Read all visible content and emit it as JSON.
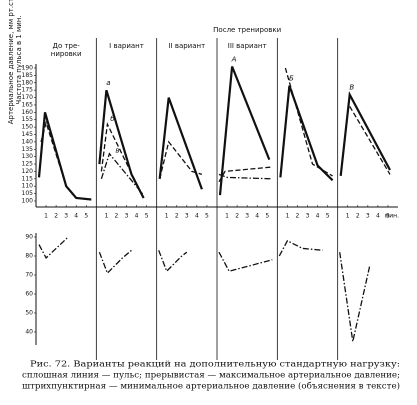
{
  "chart_data": {
    "type": "line",
    "ylabel": [
      "Артериальное давление, мм рт.ст.",
      "Частота пульса в 1 мин."
    ],
    "header": "После тренировки",
    "xlabel": "мин.",
    "xticks": [
      1,
      2,
      3,
      4,
      5
    ],
    "xlim": [
      0,
      6
    ],
    "ylim": [
      100,
      190
    ],
    "yticks": [
      100,
      105,
      110,
      115,
      120,
      125,
      130,
      135,
      140,
      145,
      150,
      155,
      160,
      165,
      170,
      175,
      180,
      185,
      190
    ],
    "y2lim": [
      30,
      90
    ],
    "y2ticks": [
      40,
      50,
      60,
      70,
      80,
      90
    ],
    "color": "#111",
    "panels": [
      {
        "title": [
          "До тре-",
          "нировки"
        ],
        "markers": [],
        "series": [
          {
            "style": "solid",
            "x": [
              0.3,
              0.9,
              3,
              4,
              5.5
            ],
            "values": [
              116,
              160,
              110,
              102,
              101
            ]
          },
          {
            "style": "dashed",
            "x": [
              0.5,
              1.0,
              3,
              4
            ],
            "values": [
              140,
              153,
              110,
              102
            ]
          },
          {
            "style": "dashdot",
            "axis": "y2",
            "x": [
              0.3,
              1.0,
              3.2
            ],
            "values": [
              86,
              79,
              90
            ]
          }
        ]
      },
      {
        "title": [
          "I вариант"
        ],
        "markers": [
          "а",
          "б",
          "в"
        ],
        "series": [
          {
            "style": "solid",
            "x": [
              0.3,
              1.0,
              3.5,
              4.7
            ],
            "values": [
              125,
              175,
              118,
              102
            ]
          },
          {
            "style": "dashed",
            "x": [
              0.5,
              1.1,
              4.7
            ],
            "values": [
              120,
              152,
              102
            ]
          },
          {
            "style": "dashdot",
            "x": [
              0.5,
              1.3,
              4.7
            ],
            "values": [
              115,
              132,
              104
            ]
          },
          {
            "style": "dashdot",
            "axis": "y2",
            "x": [
              0.3,
              1.1,
              2.6,
              3.5
            ],
            "values": [
              82,
              71,
              79,
              83
            ]
          }
        ]
      },
      {
        "title": [
          "II вариант"
        ],
        "markers": [],
        "series": [
          {
            "style": "solid",
            "x": [
              0.3,
              1.2,
              4.5
            ],
            "values": [
              115,
              170,
              108
            ]
          },
          {
            "style": "dashed",
            "x": [
              0.3,
              1.2,
              3.5,
              4.5
            ],
            "values": [
              115,
              140,
              120,
              118
            ]
          },
          {
            "style": "dashdot",
            "axis": "y2",
            "x": [
              0.2,
              1.0,
              2.5,
              3.0
            ],
            "values": [
              83,
              72,
              80,
              82
            ]
          }
        ]
      },
      {
        "title": [
          "III вариант"
        ],
        "markers": [
          "А"
        ],
        "series": [
          {
            "style": "solid",
            "x": [
              0.3,
              1.5,
              5.2
            ],
            "values": [
              104,
              191,
              128
            ]
          },
          {
            "style": "dashed",
            "x": [
              0.2,
              0.8,
              5.5
            ],
            "values": [
              113,
              120,
              123
            ]
          },
          {
            "style": "dashdot",
            "x": [
              0.2,
              1.0,
              5.5
            ],
            "values": [
              118,
              116,
              115
            ]
          },
          {
            "style": "dashdot",
            "axis": "y2",
            "x": [
              0.2,
              1.2,
              5.5
            ],
            "values": [
              82,
              72,
              78
            ]
          }
        ]
      },
      {
        "title": [],
        "markers": [
          "Б"
        ],
        "series": [
          {
            "style": "solid",
            "x": [
              0.3,
              1.2,
              4.0,
              5.5
            ],
            "values": [
              116,
              178,
              124,
              114
            ]
          },
          {
            "style": "dashed",
            "x": [
              0.8,
              3.5,
              5.5
            ],
            "values": [
              190,
              125,
              117
            ]
          },
          {
            "style": "dashdot",
            "axis": "y2",
            "x": [
              0.2,
              1.0,
              2.5,
              4.5
            ],
            "values": [
              80,
              88,
              84,
              83
            ]
          }
        ]
      },
      {
        "title": [],
        "markers": [
          "В"
        ],
        "series": [
          {
            "style": "solid",
            "x": [
              0.3,
              1.2,
              5.2
            ],
            "values": [
              117,
              172,
              121
            ]
          },
          {
            "style": "dashed",
            "x": [
              1.2,
              5.2
            ],
            "values": [
              164,
              118
            ]
          },
          {
            "style": "dashdot",
            "axis": "y2",
            "x": [
              0.2,
              1.5,
              3.2
            ],
            "values": [
              82,
              35,
              75
            ]
          }
        ]
      }
    ],
    "caption": [
      "Рис. 72. Варианты реакций на дополнительную стандартную нагрузку:",
      "сплошная линия — пульс; прерывистая — максимальное артериальное давление;",
      "штрихпунктирная — минимальное артериальное давление (объяснения в тексте)"
    ]
  }
}
